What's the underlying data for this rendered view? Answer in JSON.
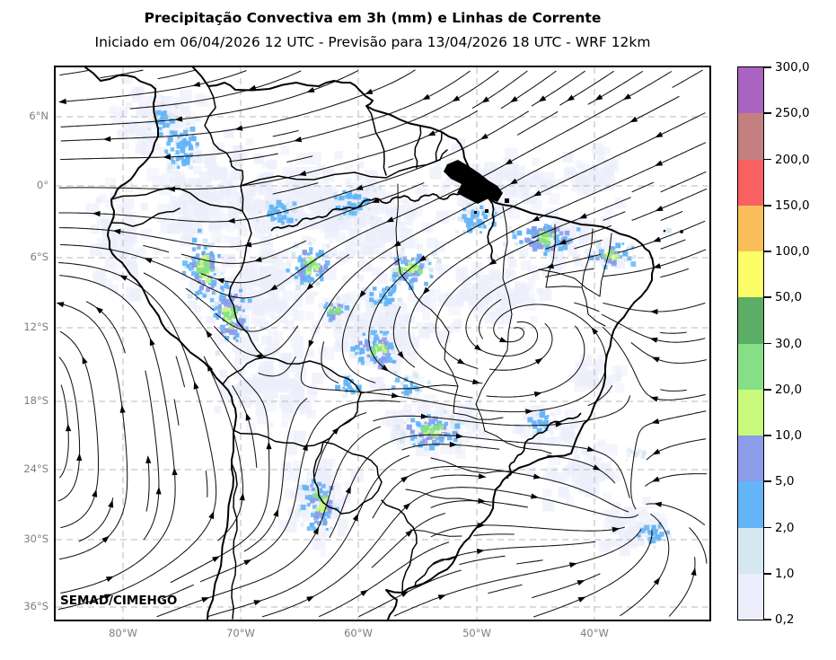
{
  "title": "Precipitação Convectiva em 3h (mm) e Linhas de Corrente",
  "subtitle": "Iniciado em 06/04/2026 12 UTC - Previsão para 13/04/2026 18 UTC - WRF 12km",
  "watermark": "SEMAD/CIMEHGO",
  "axes": {
    "lat_tick_labels": [
      "6°N",
      "0°",
      "6°S",
      "12°S",
      "18°S",
      "24°S",
      "30°S",
      "36°S"
    ],
    "lon_tick_labels": [
      "80°W",
      "70°W",
      "60°W",
      "50°W",
      "40°W"
    ]
  },
  "colorbar": {
    "tick_labels_top_to_bottom": [
      "300,0",
      "250,0",
      "200,0",
      "150,0",
      "100,0",
      "50,0",
      "30,0",
      "20,0",
      "10,0",
      "5,0",
      "2,0",
      "1,0",
      "0,2"
    ],
    "levels_mm": [
      0.2,
      1,
      2,
      5,
      10,
      20,
      30,
      50,
      100,
      150,
      200,
      250,
      300
    ],
    "segment_colors_top_to_bottom": [
      "#a964c2",
      "#c48080",
      "#f96060",
      "#fabf5a",
      "#fdfd68",
      "#5cad66",
      "#86df86",
      "#c9f97c",
      "#8b9ce8",
      "#64b5f7",
      "#d5e8ef",
      "#eceefb"
    ]
  },
  "chart_data": {
    "type": "heatmap",
    "title": "Precipitação Convectiva em 3h (mm) e Linhas de Corrente",
    "subtitle": "Iniciado em 06/04/2026 12 UTC - Previsão para 13/04/2026 18 UTC - WRF 12km",
    "field": "3h convective precipitation (mm) with wind streamlines, WRF 12km forecast over South America",
    "x_ticks": [
      "80°W",
      "70°W",
      "60°W",
      "50°W",
      "40°W"
    ],
    "y_ticks": [
      "6°N",
      "0°",
      "6°S",
      "12°S",
      "18°S",
      "24°S",
      "30°S",
      "36°S"
    ],
    "colorbar_levels_mm": [
      0.2,
      1,
      2,
      5,
      10,
      20,
      30,
      50,
      100,
      150,
      200,
      250,
      300
    ],
    "colorbar_colors_low_to_high": [
      "#eceefb",
      "#d5e8ef",
      "#64b5f7",
      "#8b9ce8",
      "#c9f97c",
      "#86df86",
      "#5cad66",
      "#fdfd68",
      "#fabf5a",
      "#f96060",
      "#c48080",
      "#a964c2"
    ],
    "legend_position": "right",
    "grid": "dashed gray lat/lon grid"
  }
}
